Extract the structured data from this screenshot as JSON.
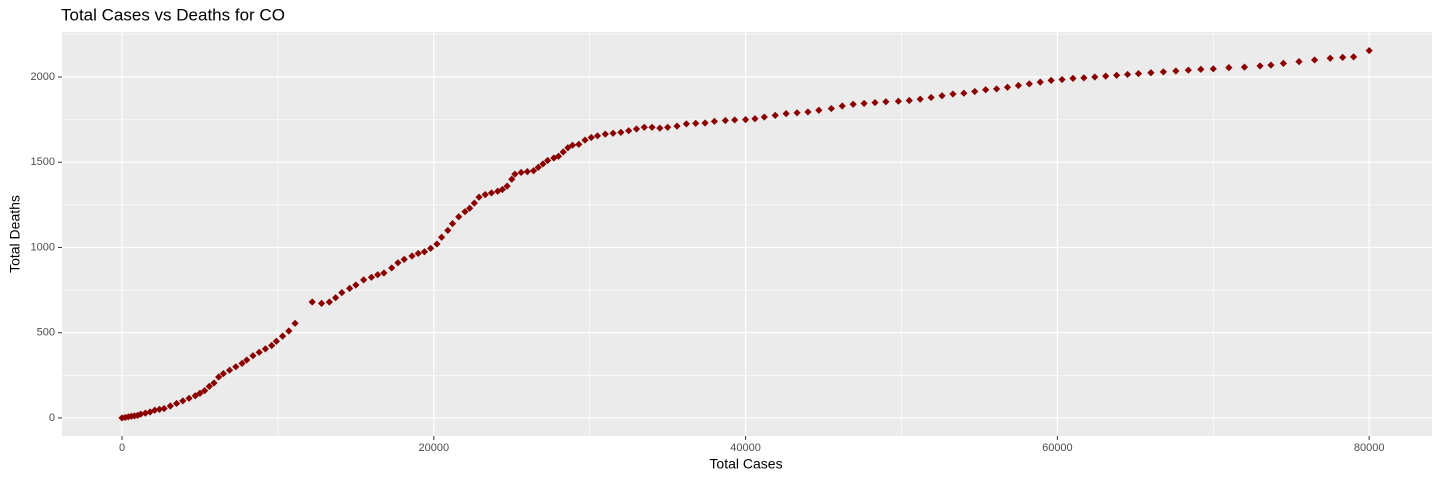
{
  "chart_data": {
    "type": "scatter",
    "title": "Total Cases vs Deaths for CO",
    "x_label": "Total Cases",
    "y_label": "Total Deaths",
    "color": "#8b0000",
    "grid": true,
    "background": "#ebebeb",
    "xlim": [
      -3850,
      84030
    ],
    "ylim": [
      -106,
      2264
    ],
    "xticks": [
      0,
      20000,
      40000,
      60000,
      80000
    ],
    "yticks": [
      0,
      500,
      1000,
      1500,
      2000
    ],
    "xminor": [
      10000,
      30000,
      50000,
      70000
    ],
    "yminor": [
      250,
      750,
      1250,
      1750,
      2250
    ],
    "x": [
      0,
      200,
      400,
      600,
      800,
      1000,
      1200,
      1500,
      1800,
      2100,
      2400,
      2700,
      3100,
      3500,
      3900,
      4300,
      4700,
      5000,
      5300,
      5600,
      5900,
      6200,
      6500,
      6900,
      7300,
      7700,
      8000,
      8400,
      8800,
      9200,
      9600,
      9900,
      10300,
      10700,
      11100,
      12200,
      12800,
      13300,
      13700,
      14100,
      14600,
      15000,
      15500,
      16000,
      16400,
      16800,
      17300,
      17700,
      18100,
      18600,
      19000,
      19400,
      19800,
      20200,
      20500,
      20900,
      21200,
      21600,
      22000,
      22300,
      22600,
      22900,
      23300,
      23700,
      24100,
      24400,
      24700,
      25000,
      25200,
      25600,
      26000,
      26400,
      26700,
      27000,
      27300,
      27700,
      28000,
      28300,
      28600,
      28900,
      29300,
      29700,
      30100,
      30500,
      31000,
      31500,
      32000,
      32500,
      33000,
      33500,
      34000,
      34500,
      35000,
      35600,
      36200,
      36800,
      37400,
      38000,
      38700,
      39300,
      40000,
      40600,
      41200,
      41900,
      42600,
      43300,
      44000,
      44700,
      45500,
      46200,
      46900,
      47600,
      48300,
      49000,
      49800,
      50500,
      51200,
      51900,
      52600,
      53300,
      54000,
      54700,
      55400,
      56100,
      56800,
      57500,
      58200,
      58900,
      59600,
      60300,
      61000,
      61700,
      62400,
      63100,
      63800,
      64500,
      65200,
      66000,
      66800,
      67600,
      68400,
      69200,
      70000,
      71000,
      72000,
      73000,
      73700,
      74500,
      75500,
      76500,
      77500,
      78300,
      79000,
      80000
    ],
    "values": [
      0,
      3,
      6,
      10,
      12,
      15,
      22,
      28,
      35,
      45,
      50,
      55,
      70,
      85,
      100,
      115,
      130,
      145,
      160,
      185,
      205,
      240,
      260,
      280,
      300,
      320,
      340,
      365,
      385,
      405,
      425,
      450,
      480,
      510,
      555,
      680,
      672,
      680,
      705,
      735,
      760,
      780,
      810,
      825,
      840,
      850,
      880,
      910,
      930,
      950,
      965,
      975,
      995,
      1020,
      1060,
      1100,
      1140,
      1180,
      1210,
      1230,
      1260,
      1295,
      1310,
      1320,
      1330,
      1340,
      1360,
      1400,
      1430,
      1440,
      1445,
      1450,
      1470,
      1490,
      1510,
      1525,
      1535,
      1560,
      1585,
      1600,
      1605,
      1630,
      1645,
      1655,
      1665,
      1670,
      1675,
      1685,
      1695,
      1705,
      1705,
      1700,
      1705,
      1712,
      1725,
      1728,
      1730,
      1740,
      1745,
      1748,
      1750,
      1755,
      1765,
      1775,
      1785,
      1790,
      1795,
      1805,
      1815,
      1830,
      1840,
      1845,
      1850,
      1855,
      1858,
      1862,
      1870,
      1880,
      1890,
      1900,
      1905,
      1915,
      1925,
      1930,
      1940,
      1950,
      1960,
      1970,
      1980,
      1985,
      1992,
      1995,
      2000,
      2005,
      2010,
      2015,
      2020,
      2025,
      2030,
      2035,
      2040,
      2045,
      2048,
      2055,
      2058,
      2065,
      2070,
      2080,
      2090,
      2100,
      2110,
      2115,
      2118,
      2155
    ]
  }
}
